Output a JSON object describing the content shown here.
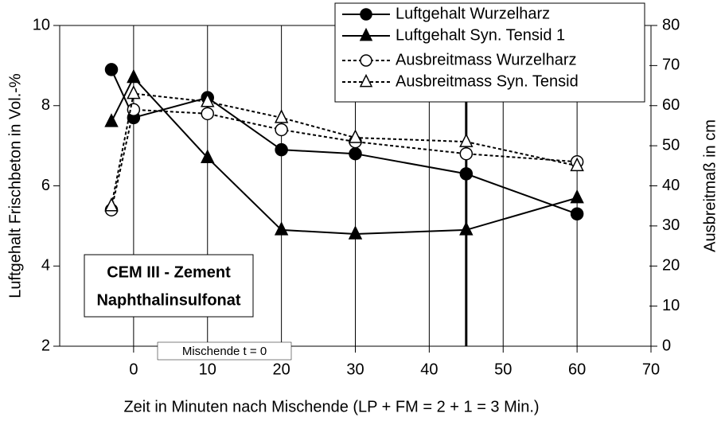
{
  "chart_data": {
    "type": "line",
    "x_label": "Zeit in Minuten nach Mischende (LP + FM = 2 + 1 = 3 Min.)",
    "y_label": "Luftgehalt Frischbeton in Vol.-%",
    "y2_label": "Ausbreitmaß in cm",
    "x": [
      -3,
      0,
      10,
      20,
      30,
      45,
      60
    ],
    "series": [
      {
        "name": "Luftgehalt Wurzelharz",
        "color": "#000000",
        "marker": "circle",
        "filled": true,
        "dashed": false,
        "values": [
          8.9,
          7.7,
          8.2,
          6.9,
          6.8,
          6.3,
          5.3
        ]
      },
      {
        "name": "Luftgehalt Syn. Tensid 1",
        "color": "#000000",
        "marker": "triangle",
        "filled": true,
        "dashed": false,
        "values": [
          7.6,
          8.7,
          6.7,
          4.9,
          4.8,
          4.9,
          5.7
        ]
      },
      {
        "name": "Ausbreitmass Wurzelharz",
        "color": "#000000",
        "marker": "circle",
        "filled": false,
        "dashed": true,
        "axis": "y2",
        "values": [
          34,
          59,
          58,
          54,
          51,
          48,
          46
        ]
      },
      {
        "name": "Ausbreitmass Syn. Tensid",
        "color": "#000000",
        "marker": "triangle",
        "filled": false,
        "dashed": true,
        "axis": "y2",
        "values": [
          35,
          63,
          61,
          57,
          52,
          51,
          45
        ]
      }
    ],
    "xlim": [
      -10,
      70
    ],
    "xticks": [
      0,
      10,
      20,
      30,
      40,
      50,
      60,
      70
    ],
    "ylim": [
      2,
      10
    ],
    "yticks": [
      2,
      4,
      6,
      8,
      10
    ],
    "y2lim": [
      0,
      80
    ],
    "y2ticks": [
      0,
      10,
      20,
      30,
      40,
      50,
      60,
      70,
      80
    ],
    "vline_x": 45,
    "annotations": [
      "CEM III - Zement",
      "Naphthalinsulfonat",
      "Mischende t = 0"
    ],
    "legend": "upper right",
    "grid": "x"
  }
}
